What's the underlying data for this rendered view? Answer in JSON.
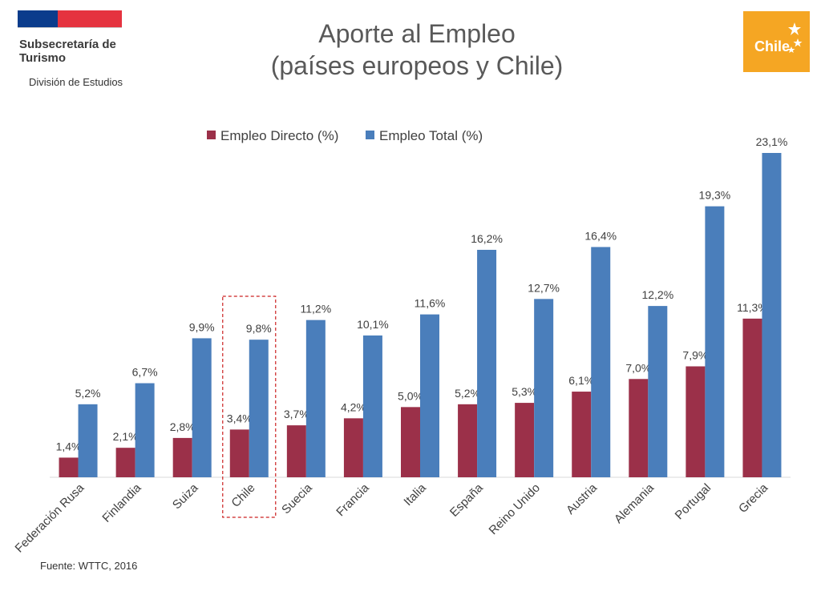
{
  "header": {
    "org_name": "Subsecretaría de Turismo",
    "division": "División de Estudios",
    "title_line1": "Aporte al Empleo",
    "title_line2": "(países europeos y Chile)",
    "logo_text": "Chile"
  },
  "footer": {
    "source": "Fuente: WTTC, 2016"
  },
  "colors": {
    "directo": "#9b3049",
    "total": "#4a7ebb",
    "highlight": "#cc2222"
  },
  "chart_data": {
    "type": "bar",
    "categories": [
      "Federación Rusa",
      "Finlandia",
      "Suiza",
      "Chile",
      "Suecia",
      "Francia",
      "Italia",
      "España",
      "Reino Unido",
      "Austria",
      "Alemania",
      "Portugal",
      "Grecia"
    ],
    "series": [
      {
        "name": "Empleo Directo (%)",
        "values": [
          1.4,
          2.1,
          2.8,
          3.4,
          3.7,
          4.2,
          5.0,
          5.2,
          5.3,
          6.1,
          7.0,
          7.9,
          11.3
        ],
        "labels": [
          "1,4%",
          "2,1%",
          "2,8%",
          "3,4%",
          "3,7%",
          "4,2%",
          "5,0%",
          "5,2%",
          "5,3%",
          "6,1%",
          "7,0%",
          "7,9%",
          "11,3%"
        ]
      },
      {
        "name": "Empleo Total (%)",
        "values": [
          5.2,
          6.7,
          9.9,
          9.8,
          11.2,
          10.1,
          11.6,
          16.2,
          12.7,
          16.4,
          12.2,
          19.3,
          23.1
        ],
        "labels": [
          "5,2%",
          "6,7%",
          "9,9%",
          "9,8%",
          "11,2%",
          "10,1%",
          "11,6%",
          "16,2%",
          "12,7%",
          "16,4%",
          "12,2%",
          "19,3%",
          "23,1%"
        ]
      }
    ],
    "highlighted_category": "Chile",
    "legend_position": "top",
    "grid": false,
    "ylim": [
      0,
      23.1
    ]
  }
}
